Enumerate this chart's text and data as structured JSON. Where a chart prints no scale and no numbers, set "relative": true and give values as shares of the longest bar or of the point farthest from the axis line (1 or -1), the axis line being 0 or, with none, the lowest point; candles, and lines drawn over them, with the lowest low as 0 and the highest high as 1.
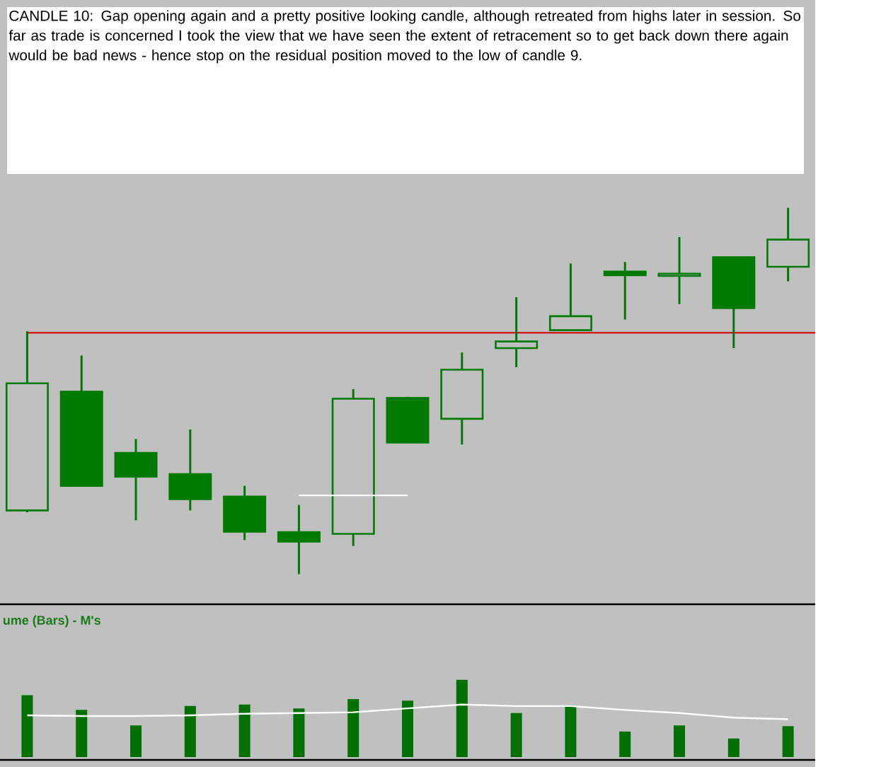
{
  "chart_data": [
    {
      "type": "candlestick",
      "relative": true,
      "color": "#007a00",
      "categories": [
        null,
        null,
        null,
        null,
        null,
        null,
        null,
        null,
        null,
        null,
        null,
        null,
        null,
        null,
        null
      ],
      "ohlc": [
        [
          0.174,
          0.663,
          0.169,
          0.521
        ],
        [
          0.498,
          0.597,
          0.241,
          0.241
        ],
        [
          0.331,
          0.369,
          0.147,
          0.266
        ],
        [
          0.273,
          0.395,
          0.174,
          0.205
        ],
        [
          0.212,
          0.241,
          0.093,
          0.116
        ],
        [
          0.115,
          0.189,
          0.0,
          0.089
        ],
        [
          0.11,
          0.505,
          0.077,
          0.479
        ],
        [
          0.481,
          0.484,
          0.359,
          0.359
        ],
        [
          0.424,
          0.605,
          0.354,
          0.558
        ],
        [
          0.617,
          0.756,
          0.565,
          0.635
        ],
        [
          0.666,
          0.848,
          0.666,
          0.704
        ],
        [
          0.826,
          0.852,
          0.695,
          0.816
        ],
        [
          0.814,
          0.92,
          0.737,
          0.82
        ],
        [
          0.865,
          0.865,
          0.617,
          0.726
        ],
        [
          0.839,
          1.0,
          0.799,
          0.913
        ]
      ],
      "ref_lines": [
        {
          "axis": "y",
          "value": 0.659,
          "color": "#cc2020"
        }
      ],
      "series": [
        {
          "type": "line",
          "color": "#ffffff",
          "values": [
            null,
            null,
            null,
            null,
            null,
            0.215,
            0.215,
            0.215,
            null,
            null,
            null,
            null,
            null,
            null,
            null
          ]
        }
      ],
      "annotations": [
        "CANDLE 10:  Gap opening again and a pretty positive looking candle, although retreated from highs later in session. So far as trade is concerned I took the view that we have seen the extent of retracement so to get back down there again would be bad news - hence stop on the residual position moved to the low of candle 9."
      ]
    },
    {
      "type": "bar",
      "relative": true,
      "title": "ume (Bars) - M's",
      "categories": [
        null,
        null,
        null,
        null,
        null,
        null,
        null,
        null,
        null,
        null,
        null,
        null,
        null,
        null,
        null
      ],
      "series": [
        {
          "type": "bar",
          "color": "#007000",
          "values": [
            0.8,
            0.61,
            0.41,
            0.66,
            0.68,
            0.63,
            0.75,
            0.73,
            1.0,
            0.57,
            0.65,
            0.33,
            0.41,
            0.24,
            0.4
          ]
        },
        {
          "type": "line",
          "color": "#ffffff",
          "values": [
            0.54,
            0.53,
            0.53,
            0.54,
            0.56,
            0.57,
            0.58,
            0.63,
            0.68,
            0.66,
            0.66,
            0.61,
            0.57,
            0.51,
            0.49
          ]
        }
      ]
    }
  ]
}
